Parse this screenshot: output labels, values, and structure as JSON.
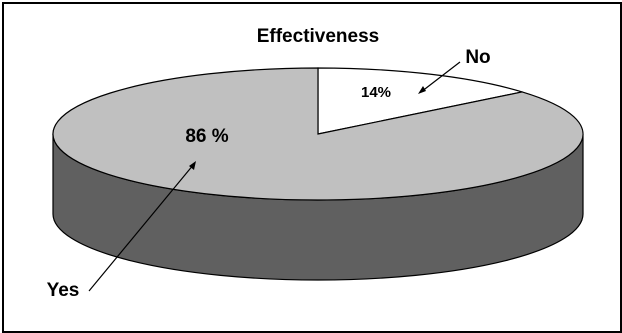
{
  "chart_data": {
    "type": "pie",
    "title": "Effectiveness",
    "slices": [
      {
        "label": "Yes",
        "value": 86,
        "display": "86 %",
        "color": "#c0c0c0"
      },
      {
        "label": "No",
        "value": 14,
        "display": "14%",
        "color": "#ffffff"
      }
    ],
    "style": "3d",
    "side_color": "#606060",
    "legend": "none"
  }
}
